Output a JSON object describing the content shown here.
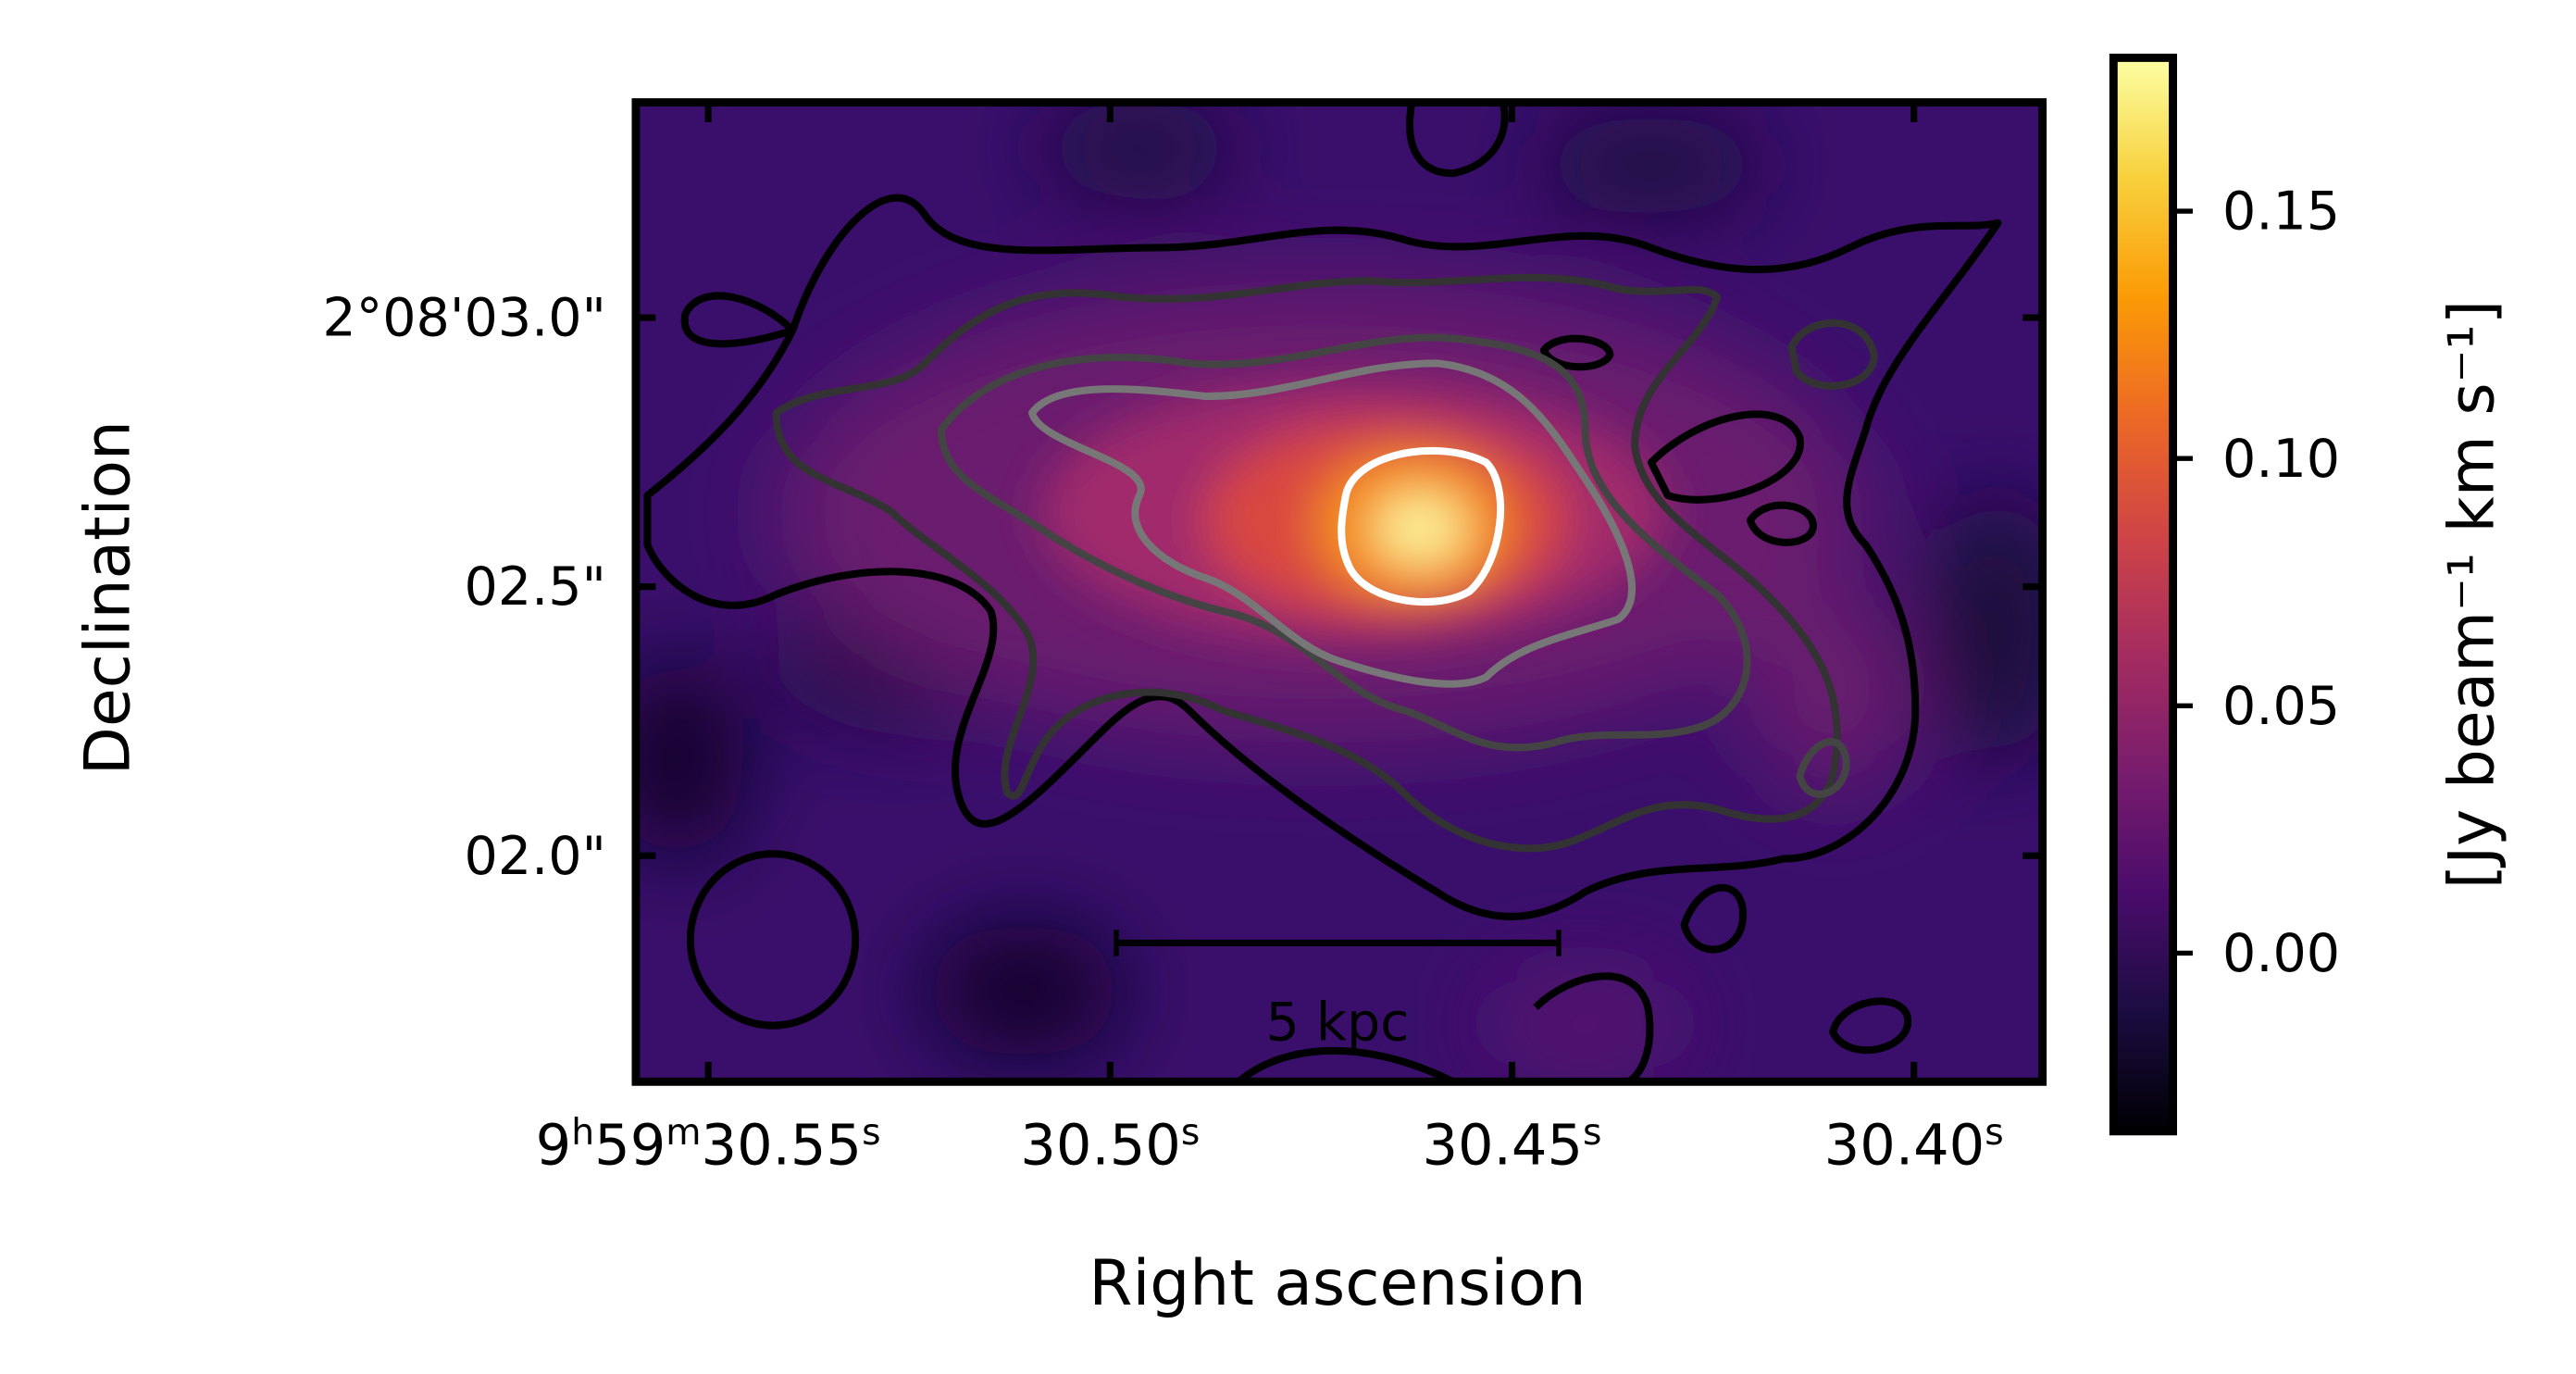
{
  "chart_data": {
    "type": "heatmap",
    "xlabel": "Right ascension",
    "ylabel": "Declination",
    "xlim": [
      30.559,
      30.384
    ],
    "xticks": [
      {
        "value": 30.55,
        "label": "9h59m30.55s"
      },
      {
        "value": 30.5,
        "label": "30.50s"
      },
      {
        "value": 30.45,
        "label": "30.45s"
      },
      {
        "value": 30.4,
        "label": "30.40s"
      }
    ],
    "ylim": [
      1.58,
      3.4
    ],
    "yticks": [
      {
        "value": 3.0,
        "label": "2°08'03.0\""
      },
      {
        "value": 2.5,
        "label": "02.5\""
      },
      {
        "value": 2.0,
        "label": "02.0\""
      }
    ],
    "scalebar_label": "5 kpc",
    "colorbar": {
      "label": "[Jy beam⁻¹ km s⁻¹]",
      "colormap": "inferno",
      "lim": [
        -0.036,
        0.181
      ],
      "ticks": [
        {
          "value": 0.0,
          "label": "0.00"
        },
        {
          "value": 0.05,
          "label": "0.05"
        },
        {
          "value": 0.1,
          "label": "0.10"
        },
        {
          "value": 0.15,
          "label": "0.15"
        }
      ]
    }
  }
}
